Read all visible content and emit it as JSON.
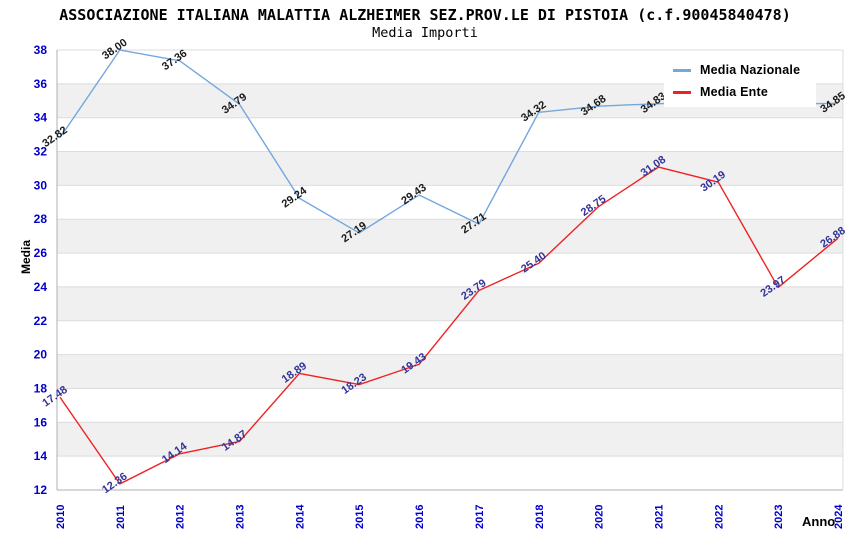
{
  "header": {
    "title": "ASSOCIAZIONE ITALIANA MALATTIA ALZHEIMER SEZ.PROV.LE DI PISTOIA (c.f.90045840478)",
    "subtitle": "Media Importi"
  },
  "axes": {
    "y_title": "Media",
    "x_title": "Anno",
    "tick_color": "#0000cc"
  },
  "chart_data": {
    "type": "line",
    "title": "ASSOCIAZIONE ITALIANA MALATTIA ALZHEIMER SEZ.PROV.LE DI PISTOIA (c.f.90045840478)",
    "subtitle": "Media Importi",
    "xlabel": "Anno",
    "ylabel": "Media",
    "ylim": [
      12,
      38
    ],
    "ytick_step": 2,
    "grid": "horizontal gridlines with alternating white/#f0f0f0 bands",
    "legend_position": "top-right inside plot, white box",
    "categories": [
      "2010",
      "2011",
      "2012",
      "2013",
      "2014",
      "2015",
      "2016",
      "2017",
      "2018",
      "2020",
      "2021",
      "2022",
      "2023",
      "2024"
    ],
    "series": [
      {
        "name": "Media Nazionale",
        "color": "#74a7dd",
        "label_color": "#1a1a1a",
        "values": [
          32.82,
          38.0,
          37.36,
          34.79,
          29.24,
          27.19,
          29.43,
          27.71,
          34.32,
          34.68,
          34.83,
          34.9,
          34.8,
          34.85
        ],
        "point_labels": [
          "32.82",
          "38.00",
          "37.36",
          "34.79",
          "29.24",
          "27.19",
          "29.43",
          "27.71",
          "34.32",
          "34.68",
          "34.83",
          "",
          "",
          "34.85"
        ]
      },
      {
        "name": "Media Ente",
        "color": "#ee2222",
        "label_color": "#333399",
        "values": [
          17.48,
          12.36,
          14.14,
          14.87,
          18.89,
          18.23,
          19.43,
          23.79,
          25.4,
          28.75,
          31.08,
          30.19,
          23.97,
          26.88
        ],
        "point_labels": [
          "17.48",
          "12.36",
          "14.14",
          "14.87",
          "18.89",
          "18.23",
          "19.43",
          "23.79",
          "25.40",
          "28.75",
          "31.08",
          "30.19",
          "23.97",
          "26.88"
        ]
      }
    ]
  }
}
